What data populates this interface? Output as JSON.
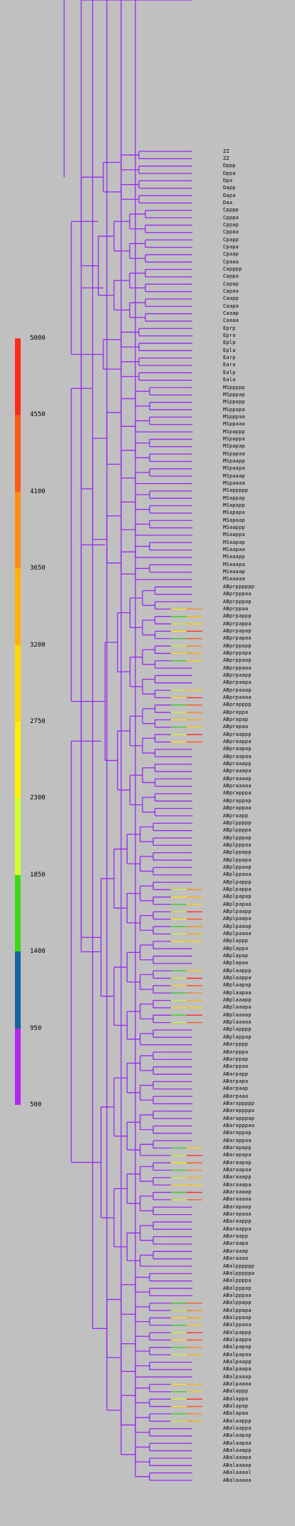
{
  "legend": {
    "ticks": [
      "5000",
      "4550",
      "4100",
      "3650",
      "3200",
      "2750",
      "2300",
      "1850",
      "1400",
      "950",
      "500"
    ],
    "colors": [
      "#ff2a1a",
      "#ff5a14",
      "#ff8c14",
      "#ffb400",
      "#ffd700",
      "#fff000",
      "#d2ff2a",
      "#3cdc14",
      "#1464a0",
      "#b428f0"
    ]
  },
  "tree": {
    "base_color": "#9628f0",
    "leaves": [
      "ZZ",
      "ZZ",
      "Dppp",
      "Dppa",
      "Dpa",
      "Dapp",
      "Dapa",
      "Daa",
      "Cpppp",
      "Cpppa",
      "Cppap",
      "Cppaa",
      "Cpapp",
      "Cpapa",
      "Cpaap",
      "Cpaaa",
      "Capppp",
      "Cappa",
      "Capap",
      "Capaa",
      "Caapp",
      "Caapa",
      "Caaap",
      "Caaaa",
      "Eprp",
      "Epra",
      "Eplp",
      "Epla",
      "Earp",
      "Eara",
      "Ealp",
      "Eala",
      "MSppppp",
      "MSpppap",
      "MSppapp",
      "MSppapa",
      "MSpppaa",
      "MSppaaa",
      "MSpappp",
      "MSpappa",
      "MSpapap",
      "MSpapaa",
      "MSpaapp",
      "MSpaapa",
      "MSpaaap",
      "MSpaaaa",
      "MSappppp",
      "MSappap",
      "MSapapp",
      "MSapapa",
      "MSapaap",
      "MSaappp",
      "MSaappa",
      "MSaapap",
      "MSaapaa",
      "MSaaapp",
      "MSaaapa",
      "MSaaaap",
      "MSaaaaa",
      "ABprpppppp",
      "ABprpppaa",
      "ABprpppap",
      "ABprppaa",
      "ABprpappp",
      "ABprpappa",
      "ABprpapap",
      "ABprpapaa",
      "ABprppapp",
      "ABprppapa",
      "ABprppaap",
      "ABprppaaa",
      "ABprpaapp",
      "ABprpaapa",
      "ABprpaaap",
      "ABprpaaaa",
      "ABprapppp",
      "ABprappa",
      "ABprapap",
      "ABprapaa",
      "ABpraappp",
      "ABpraappa",
      "ABpraapap",
      "ABpraapaa",
      "ABpraaapp",
      "ABpraaapa",
      "ABpraaaap",
      "ABpraaaaa",
      "ABprapppa",
      "ABprappap",
      "ABprappaa",
      "ABpraapp",
      "ABplppppp",
      "ABplppppa",
      "ABplpppap",
      "ABplpppaa",
      "ABplppapp",
      "ABplppapa",
      "ABplppaap",
      "ABplppaaa",
      "ABplpappp",
      "ABplpappa",
      "ABplpapap",
      "ABplpapaa",
      "ABplpaapp",
      "ABplpaapa",
      "ABplpaaap",
      "ABplpaaaa",
      "ABplappp",
      "ABplappa",
      "ABplapap",
      "ABplapaa",
      "ABplaappp",
      "ABplaappa",
      "ABplaapap",
      "ABplaapaa",
      "ABplaaapp",
      "ABplaaapa",
      "ABplaaaap",
      "ABplaaaaa",
      "ABplapppp",
      "ABplappap",
      "ABarpppp",
      "ABarpppa",
      "ABarppap",
      "ABarppaa",
      "ABarpapp",
      "ABarpapa",
      "ABarpaap",
      "ABarpaaa",
      "ABarappppp",
      "ABarappppa",
      "ABarapppap",
      "ABarapppaa",
      "ABarappap",
      "ABarappaa",
      "ABarapapp",
      "ABarapapa",
      "ABaraapap",
      "ABaraapaa",
      "ABaraaapp",
      "ABaraaapa",
      "ABaraaaap",
      "ABaraaaaa",
      "ABarapaap",
      "ABarapaaa",
      "ABaraappp",
      "ABaraappa",
      "ABaraapp",
      "ABaraapa",
      "ABaraaap",
      "ABaraaaa",
      "ABalpppppp",
      "ABalpppppa",
      "ABalppppa",
      "ABalpppap",
      "ABalpppaa",
      "ABalppapp",
      "ABalppapa",
      "ABalppaap",
      "ABalppaaa",
      "ABalpappp",
      "ABalpappa",
      "ABalpapap",
      "ABalpapaa",
      "ABalpaapp",
      "ABalpaapa",
      "ABalpaaap",
      "ABalpaaaa",
      "ABalappp",
      "ABalappa",
      "ABalapap",
      "ABalapaa",
      "ABalaappp",
      "ABalaappa",
      "ABalaapap",
      "ABalaapaa",
      "ABalaaapp",
      "ABalaaapa",
      "ABalaaaap",
      "ABalaaaal",
      "ABalaaaaa"
    ]
  }
}
